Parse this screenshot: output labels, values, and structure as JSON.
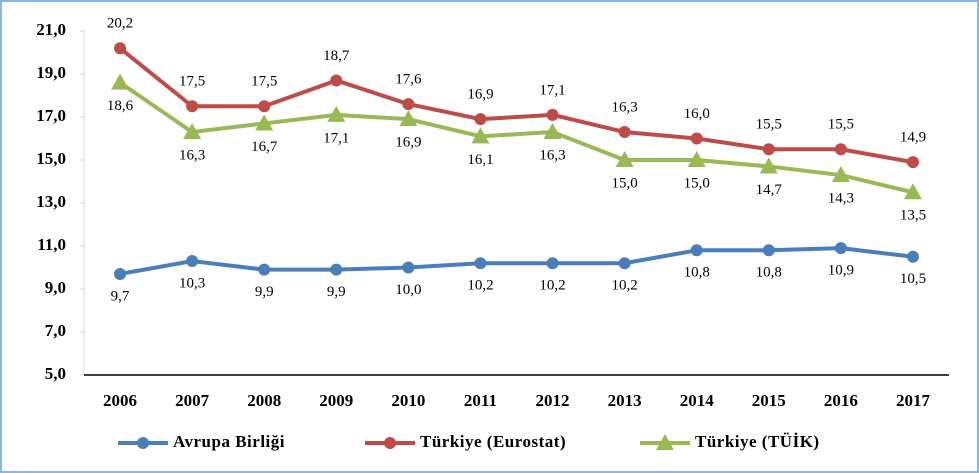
{
  "chart_data": {
    "type": "line",
    "categories": [
      "2006",
      "2007",
      "2008",
      "2009",
      "2010",
      "2011",
      "2012",
      "2013",
      "2014",
      "2015",
      "2016",
      "2017"
    ],
    "series": [
      {
        "name": "Avrupa Birliği",
        "color": "#4a7ebb",
        "marker": "circle",
        "values": [
          9.7,
          10.3,
          9.9,
          9.9,
          10.0,
          10.2,
          10.2,
          10.2,
          10.8,
          10.8,
          10.9,
          10.5
        ],
        "value_labels": [
          "9,7",
          "10,3",
          "9,9",
          "9,9",
          "10,0",
          "10,2",
          "10,2",
          "10,2",
          "10,8",
          "10,8",
          "10,9",
          "10,5"
        ]
      },
      {
        "name": "Türkiye (Eurostat)",
        "color": "#be4b48",
        "marker": "circle",
        "values": [
          20.2,
          17.5,
          17.5,
          18.7,
          17.6,
          16.9,
          17.1,
          16.3,
          16.0,
          15.5,
          15.5,
          14.9
        ],
        "value_labels": [
          "20,2",
          "17,5",
          "17,5",
          "18,7",
          "17,6",
          "16,9",
          "17,1",
          "16,3",
          "16,0",
          "15,5",
          "15,5",
          "14,9"
        ]
      },
      {
        "name": "Türkiye (TÜİK)",
        "color": "#98b954",
        "marker": "triangle",
        "values": [
          18.6,
          16.3,
          16.7,
          17.1,
          16.9,
          16.1,
          16.3,
          15.0,
          15.0,
          14.7,
          14.3,
          13.5
        ],
        "value_labels": [
          "18,6",
          "16,3",
          "16,7",
          "17,1",
          "16,9",
          "16,1",
          "16,3",
          "15,0",
          "15,0",
          "14,7",
          "14,3",
          "13,5"
        ]
      }
    ],
    "ylim": [
      5,
      21
    ],
    "yticks": [
      {
        "value": 5,
        "label": "5,0"
      },
      {
        "value": 7,
        "label": "7,0"
      },
      {
        "value": 9,
        "label": "9,0"
      },
      {
        "value": 11,
        "label": "11,0"
      },
      {
        "value": 13,
        "label": "13,0"
      },
      {
        "value": 15,
        "label": "15,0"
      },
      {
        "value": 17,
        "label": "17,0"
      },
      {
        "value": 19,
        "label": "19,0"
      },
      {
        "value": 21,
        "label": "21,0"
      }
    ],
    "grid": false,
    "legend": "bottom"
  }
}
